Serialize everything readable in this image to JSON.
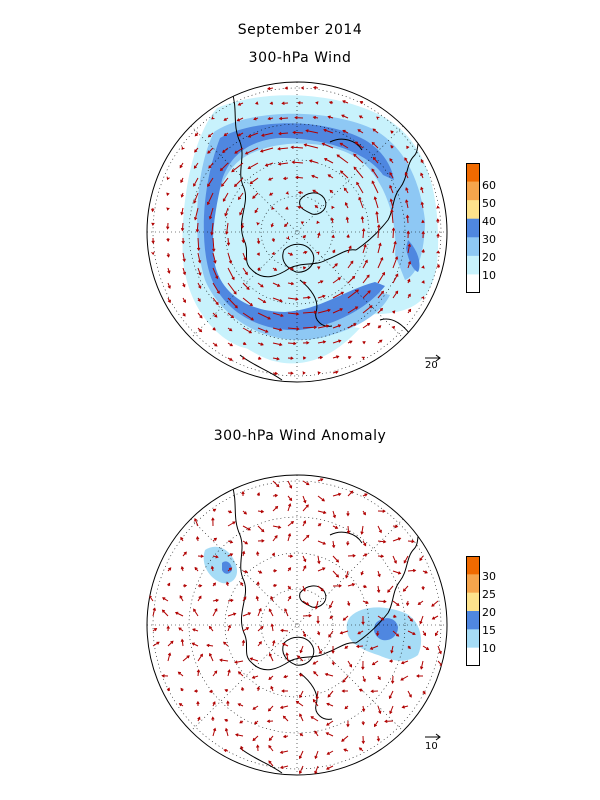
{
  "header": {
    "month": "September 2014",
    "top_title": "300-hPa Wind",
    "bottom_title": "300-hPa Wind Anomaly"
  },
  "top_panel": {
    "colorbar_labels": [
      "60",
      "50",
      "40",
      "30",
      "20",
      "10"
    ],
    "colorbar_colors": [
      "#f06a00",
      "#f6a54c",
      "#fde28c",
      "#4f87e0",
      "#8ec8f4",
      "#c8f2fc",
      "#ffffff"
    ],
    "reference_vector_label": "20"
  },
  "bottom_panel": {
    "colorbar_labels": [
      "30",
      "25",
      "20",
      "15",
      "10"
    ],
    "colorbar_colors": [
      "#f06a00",
      "#f6a54c",
      "#fde28c",
      "#4f87e0",
      "#a6dcf6",
      "#ffffff"
    ],
    "reference_vector_label": "10"
  },
  "colors": {
    "vector": "#b00000",
    "coast": "#000000",
    "shade_light": "#c8f2fc",
    "shade_mid": "#8ec8f4",
    "shade_dark": "#4f87e0"
  }
}
